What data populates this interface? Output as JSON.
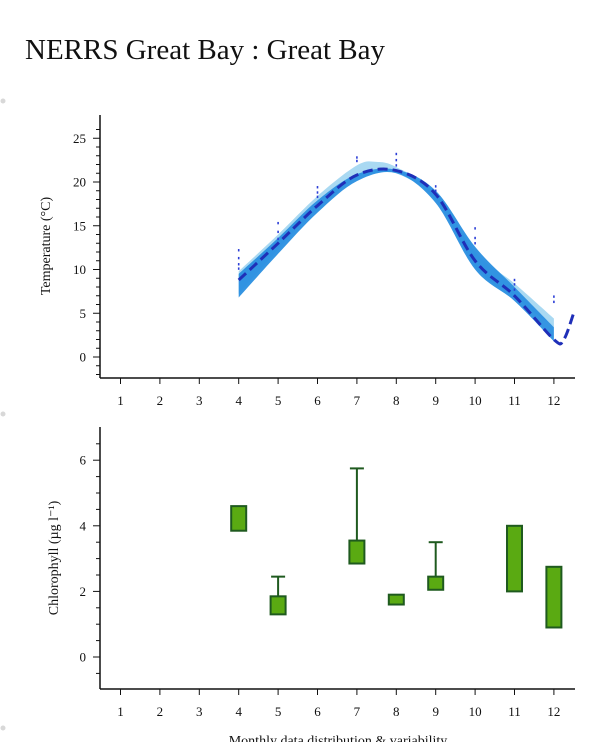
{
  "page": {
    "title": "NERRS Great Bay : Great Bay"
  },
  "caption": "Monthly data distribution & variability",
  "colors": {
    "temp_band_light": "#a9d9f2",
    "temp_band_dark": "#2a8fe0",
    "temp_line": "#1f2fb8",
    "temp_obs": "#2b3ed6",
    "chl_fill": "#5aaa12",
    "chl_stroke": "#1f5a1f",
    "axis": "#111111"
  },
  "chart_data": [
    {
      "type": "area",
      "id": "temperature",
      "title": "",
      "xlabel": "",
      "ylabel": "Temperature (°C)",
      "xlim": [
        0.5,
        12.5
      ],
      "ylim": [
        -2.5,
        27
      ],
      "x_ticks": [
        1,
        2,
        3,
        4,
        5,
        6,
        7,
        8,
        9,
        10,
        11,
        12
      ],
      "y_ticks": [
        0,
        5,
        10,
        15,
        20,
        25
      ],
      "series": [
        {
          "role": "climatology-upper-light",
          "x": [
            4,
            5,
            6,
            7,
            7.5,
            8,
            9,
            10,
            11,
            12
          ],
          "values": [
            9.8,
            14.0,
            18.4,
            21.9,
            22.3,
            21.7,
            18.8,
            12.0,
            8.4,
            4.4
          ]
        },
        {
          "role": "climatology-lower-light",
          "x": [
            4,
            5,
            6,
            7,
            7.5,
            8,
            9,
            10,
            11,
            12
          ],
          "values": [
            7.2,
            12.3,
            17.0,
            20.5,
            21.0,
            21.0,
            18.0,
            10.3,
            6.8,
            3.4
          ]
        },
        {
          "role": "year-range-upper",
          "x": [
            4,
            5,
            6,
            7,
            8,
            9,
            10,
            11,
            12
          ],
          "values": [
            9.5,
            13.6,
            17.9,
            20.9,
            21.4,
            19.0,
            12.6,
            8.0,
            3.4
          ]
        },
        {
          "role": "year-range-lower",
          "x": [
            4,
            5,
            6,
            7,
            8,
            9,
            10,
            11,
            12
          ],
          "values": [
            6.8,
            11.8,
            16.5,
            20.1,
            21.0,
            17.6,
            10.0,
            6.4,
            1.8
          ]
        },
        {
          "role": "mean-line",
          "x": [
            4,
            5,
            6,
            7,
            8,
            9,
            10,
            11,
            12,
            12.25,
            12.5
          ],
          "values": [
            8.8,
            13.0,
            17.3,
            20.8,
            21.3,
            18.6,
            11.0,
            7.0,
            2.0,
            2.0,
            5.0
          ]
        }
      ],
      "observations": [
        {
          "x": 4,
          "values": [
            10.1,
            10.6,
            11.3,
            12.2
          ]
        },
        {
          "x": 5,
          "values": [
            13.5,
            14.3,
            15.3
          ]
        },
        {
          "x": 6,
          "values": [
            18.3,
            18.8,
            19.4
          ]
        },
        {
          "x": 7,
          "values": [
            22.4,
            22.8
          ]
        },
        {
          "x": 8,
          "values": [
            21.9,
            22.5,
            23.2
          ]
        },
        {
          "x": 9,
          "values": [
            19.0,
            19.5
          ]
        },
        {
          "x": 10,
          "values": [
            13.0,
            13.6,
            14.7
          ]
        },
        {
          "x": 11,
          "values": [
            7.7,
            8.3,
            8.8
          ]
        },
        {
          "x": 12,
          "values": [
            6.3,
            6.9
          ]
        }
      ]
    },
    {
      "type": "box",
      "id": "chlorophyll",
      "title": "",
      "xlabel": "Monthly data distribution & variability",
      "ylabel": "Chlorophyll (µg l⁻¹)",
      "xlim": [
        0.5,
        12.5
      ],
      "ylim": [
        -1.0,
        7.0
      ],
      "x_ticks": [
        1,
        2,
        3,
        4,
        5,
        6,
        7,
        8,
        9,
        10,
        11,
        12
      ],
      "y_ticks": [
        0,
        2,
        4,
        6
      ],
      "boxes": [
        {
          "x": 4,
          "q1": 3.85,
          "q3": 4.6,
          "whisker_high": null
        },
        {
          "x": 5,
          "q1": 1.3,
          "q3": 1.85,
          "whisker_high": 2.45
        },
        {
          "x": 7,
          "q1": 2.85,
          "q3": 3.55,
          "whisker_high": 5.75
        },
        {
          "x": 8,
          "q1": 1.6,
          "q3": 1.9,
          "whisker_high": null
        },
        {
          "x": 9,
          "q1": 2.05,
          "q3": 2.45,
          "whisker_high": 3.5
        },
        {
          "x": 11,
          "q1": 2.0,
          "q3": 4.0,
          "whisker_high": null
        },
        {
          "x": 12,
          "q1": 0.9,
          "q3": 2.75,
          "whisker_high": null
        }
      ]
    }
  ]
}
